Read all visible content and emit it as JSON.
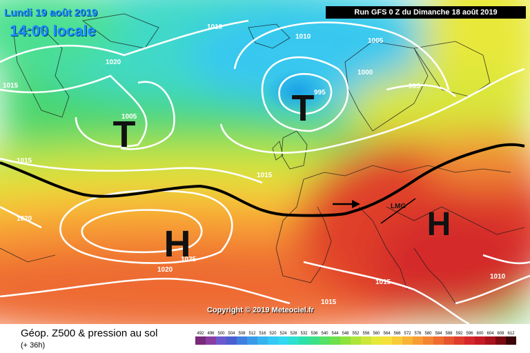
{
  "header": {
    "date": "Lundi 19 août 2019",
    "local_time": "14:00 locale",
    "run_info": "Run GFS 0 Z du Dimanche 18 août 2019"
  },
  "copyright": "Copyright © 2019 Meteociel.fr",
  "legend": {
    "title": "Géop. Z500 & pression au sol",
    "subtitle": "(+ 36h)",
    "scale_values": [
      "492",
      "496",
      "500",
      "504",
      "508",
      "512",
      "516",
      "520",
      "524",
      "528",
      "532",
      "536",
      "540",
      "544",
      "548",
      "552",
      "556",
      "560",
      "564",
      "568",
      "572",
      "576",
      "580",
      "584",
      "588",
      "592",
      "596",
      "600",
      "604",
      "608",
      "612"
    ],
    "scale_colors": [
      "#7a2a7a",
      "#8a3ea0",
      "#6a5acd",
      "#4b5fcf",
      "#3f7fe0",
      "#3a9ae8",
      "#36b4f0",
      "#33c8f5",
      "#30d8f0",
      "#2de0d0",
      "#2de0a8",
      "#3ce088",
      "#55e066",
      "#6ee04a",
      "#8de23c",
      "#aee43a",
      "#cce63a",
      "#e6e83a",
      "#f5e03a",
      "#f8cc38",
      "#f8b436",
      "#f89c34",
      "#f48432",
      "#ee6c30",
      "#e6542e",
      "#de3c2c",
      "#d4282a",
      "#c41a24",
      "#a8121c",
      "#7a0a12",
      "#3a0408"
    ]
  },
  "pressure_systems": [
    {
      "type": "low",
      "letter": "T"
    },
    {
      "type": "low",
      "letter": "T"
    },
    {
      "type": "high",
      "letter": "H"
    },
    {
      "type": "high",
      "letter": "H"
    }
  ],
  "isobar_labels": [
    "1010",
    "1010",
    "1005",
    "1020",
    "1015",
    "1005",
    "995",
    "1000",
    "995",
    "1015",
    "1015",
    "1020",
    "1020",
    "1025",
    "1015",
    "1015",
    "1010"
  ],
  "front_label": "LMG",
  "colors": {
    "isobar": "#ffffff",
    "jet_axis": "#000000",
    "header_text": "#1e90ff"
  }
}
